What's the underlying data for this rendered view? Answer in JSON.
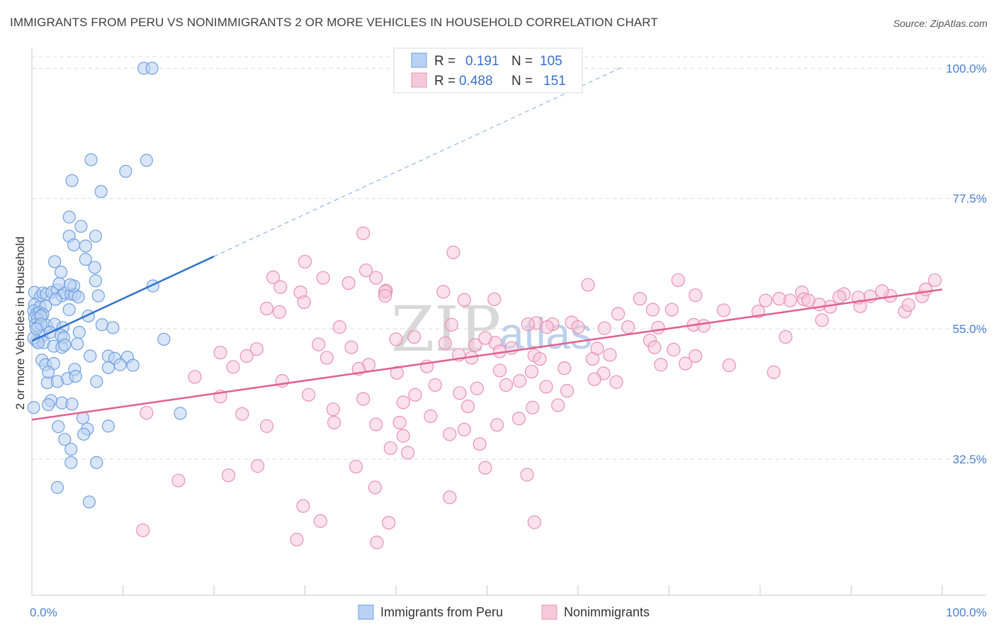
{
  "title": "IMMIGRANTS FROM PERU VS NONIMMIGRANTS 2 OR MORE VEHICLES IN HOUSEHOLD CORRELATION CHART",
  "source": "Source: ZipAtlas.com",
  "watermark": {
    "zip": "ZIP",
    "atlas": "atlas"
  },
  "colors": {
    "blue": "#6fa0e0",
    "blue_fill": "#b9d1f3",
    "blue_line": "#2f72cc",
    "pink": "#e891b3",
    "pink_fill": "#f6c9da",
    "pink_line": "#e0608e",
    "grid": "#d9d9d9",
    "tick_text": "#4a7fd0"
  },
  "legend": {
    "rows": [
      {
        "r_label": "R =",
        "r_value": "0.191",
        "n_label": "N =",
        "n_value": "105"
      },
      {
        "r_label": "R =",
        "r_value": "0.488",
        "n_label": "N =",
        "n_value": "151"
      }
    ]
  },
  "bottom_legend": [
    "Immigrants from Peru",
    "Nonimmigrants"
  ],
  "chart_data": {
    "type": "scatter",
    "title": "IMMIGRANTS FROM PERU VS NONIMMIGRANTS 2 OR MORE VEHICLES IN HOUSEHOLD CORRELATION CHART",
    "xlabel": "",
    "ylabel": "2 or more Vehicles in Household",
    "xlim": [
      0,
      100
    ],
    "ylim": [
      9,
      102
    ],
    "x_tick_labels": [
      "0.0%",
      "100.0%"
    ],
    "y_ticks": [
      32.5,
      55.0,
      77.5,
      100.0
    ],
    "y_tick_labels": [
      "32.5%",
      "55.0%",
      "77.5%",
      "100.0%"
    ],
    "grid": true,
    "series": [
      {
        "name": "Immigrants from Peru",
        "r": 0.191,
        "n": 105,
        "trend": {
          "x0": 0,
          "y0": 52.9,
          "x1": 20,
          "y1": 67.5,
          "dashed_to_x": 65,
          "dashed_to_y": 100.3
        },
        "points": [
          [
            12.3,
            100
          ],
          [
            13.2,
            100
          ],
          [
            6.5,
            84.2
          ],
          [
            12.6,
            84.1
          ],
          [
            10.3,
            82.2
          ],
          [
            4.4,
            80.6
          ],
          [
            7.6,
            78.7
          ],
          [
            4.1,
            74.3
          ],
          [
            5.4,
            72.7
          ],
          [
            4.1,
            71.0
          ],
          [
            7.0,
            71.0
          ],
          [
            4.6,
            69.5
          ],
          [
            5.9,
            69.3
          ],
          [
            5.9,
            67.0
          ],
          [
            2.5,
            66.6
          ],
          [
            0.3,
            61.3
          ],
          [
            0.9,
            60.5
          ],
          [
            1.2,
            61.2
          ],
          [
            1.6,
            61.0
          ],
          [
            2.2,
            61.3
          ],
          [
            2.8,
            61.7
          ],
          [
            3.3,
            60.7
          ],
          [
            3.6,
            61.2
          ],
          [
            4.3,
            61.0
          ],
          [
            4.7,
            60.9
          ],
          [
            5.1,
            60.5
          ],
          [
            0.3,
            59.2
          ],
          [
            0.9,
            58.8
          ],
          [
            1.5,
            58.9
          ],
          [
            0.2,
            58.1
          ],
          [
            0.5,
            57.6
          ],
          [
            0.8,
            57.8
          ],
          [
            1.2,
            57.5
          ],
          [
            0.3,
            56.9
          ],
          [
            0.6,
            56.7
          ],
          [
            1.0,
            57.2
          ],
          [
            0.4,
            55.7
          ],
          [
            0.7,
            55.4
          ],
          [
            1.6,
            55.6
          ],
          [
            2.5,
            55.8
          ],
          [
            3.4,
            55.2
          ],
          [
            4.1,
            58.3
          ],
          [
            1.1,
            53.7
          ],
          [
            2.0,
            54.4
          ],
          [
            3.2,
            53.9
          ],
          [
            0.5,
            52.9
          ],
          [
            1.3,
            52.6
          ],
          [
            3.5,
            53.5
          ],
          [
            5.2,
            54.4
          ],
          [
            7.3,
            60.7
          ],
          [
            7.0,
            63.3
          ],
          [
            4.6,
            62.4
          ],
          [
            3.0,
            62.8
          ],
          [
            13.3,
            62.4
          ],
          [
            2.4,
            52.0
          ],
          [
            3.3,
            51.8
          ],
          [
            3.6,
            52.2
          ],
          [
            5.0,
            52.4
          ],
          [
            6.4,
            50.3
          ],
          [
            8.4,
            50.3
          ],
          [
            9.1,
            49.9
          ],
          [
            10.5,
            50.1
          ],
          [
            14.5,
            53.2
          ],
          [
            1.1,
            49.6
          ],
          [
            1.5,
            48.8
          ],
          [
            2.4,
            49.0
          ],
          [
            4.7,
            48.0
          ],
          [
            8.4,
            48.3
          ],
          [
            9.7,
            48.8
          ],
          [
            11.1,
            48.7
          ],
          [
            1.7,
            45.7
          ],
          [
            2.8,
            45.9
          ],
          [
            3.9,
            46.4
          ],
          [
            4.8,
            46.8
          ],
          [
            7.1,
            45.9
          ],
          [
            2.1,
            42.6
          ],
          [
            1.8,
            41.9
          ],
          [
            3.3,
            42.2
          ],
          [
            4.4,
            42.0
          ],
          [
            16.3,
            40.4
          ],
          [
            5.6,
            39.6
          ],
          [
            2.9,
            38.1
          ],
          [
            6.1,
            37.7
          ],
          [
            8.4,
            38.2
          ],
          [
            3.6,
            35.9
          ],
          [
            5.7,
            36.8
          ],
          [
            4.3,
            34.2
          ],
          [
            7.1,
            31.9
          ],
          [
            4.3,
            31.9
          ],
          [
            2.8,
            27.6
          ],
          [
            6.3,
            25.1
          ],
          [
            0.2,
            41.4
          ],
          [
            0.2,
            53.4
          ],
          [
            1.0,
            55.8
          ],
          [
            2.6,
            60.1
          ],
          [
            3.2,
            64.8
          ],
          [
            6.9,
            65.6
          ],
          [
            7.7,
            55.7
          ],
          [
            8.9,
            55.2
          ],
          [
            0.5,
            55.0
          ],
          [
            6.2,
            57.2
          ],
          [
            4.2,
            62.6
          ],
          [
            0.7,
            52.6
          ],
          [
            1.8,
            47.5
          ]
        ]
      },
      {
        "name": "Nonimmigrants",
        "r": 0.488,
        "n": 151,
        "trend": {
          "x0": 0,
          "y0": 39.3,
          "x1": 100,
          "y1": 61.8
        },
        "points": [
          [
            36.4,
            71.5
          ],
          [
            46.3,
            68.2
          ],
          [
            30.0,
            66.6
          ],
          [
            36.7,
            65.1
          ],
          [
            26.5,
            63.9
          ],
          [
            32.0,
            63.8
          ],
          [
            37.8,
            63.8
          ],
          [
            34.8,
            62.9
          ],
          [
            27.3,
            62.2
          ],
          [
            38.9,
            61.6
          ],
          [
            45.2,
            61.4
          ],
          [
            38.8,
            61.4
          ],
          [
            29.5,
            61.3
          ],
          [
            38.8,
            60.7
          ],
          [
            47.5,
            60.0
          ],
          [
            61.1,
            62.6
          ],
          [
            71.0,
            63.4
          ],
          [
            84.6,
            61.3
          ],
          [
            66.8,
            60.2
          ],
          [
            84.8,
            60.1
          ],
          [
            50.8,
            60.1
          ],
          [
            72.9,
            60.8
          ],
          [
            94.3,
            60.7
          ],
          [
            92.1,
            60.6
          ],
          [
            89.2,
            61.0
          ],
          [
            29.9,
            59.6
          ],
          [
            25.8,
            58.5
          ],
          [
            27.2,
            57.9
          ],
          [
            64.4,
            57.6
          ],
          [
            68.2,
            58.3
          ],
          [
            70.3,
            58.3
          ],
          [
            91.0,
            58.9
          ],
          [
            97.8,
            60.6
          ],
          [
            55.4,
            56.0
          ],
          [
            57.2,
            55.8
          ],
          [
            59.3,
            56.1
          ],
          [
            60.0,
            55.3
          ],
          [
            65.5,
            55.3
          ],
          [
            72.7,
            55.7
          ],
          [
            76.0,
            58.2
          ],
          [
            79.8,
            58.0
          ],
          [
            87.7,
            58.8
          ],
          [
            33.8,
            55.3
          ],
          [
            46.1,
            55.7
          ],
          [
            54.5,
            55.8
          ],
          [
            56.6,
            55.3
          ],
          [
            62.9,
            55.1
          ],
          [
            68.8,
            55.2
          ],
          [
            73.8,
            55.5
          ],
          [
            86.8,
            56.5
          ],
          [
            95.9,
            58.0
          ],
          [
            50.9,
            52.6
          ],
          [
            51.4,
            51.1
          ],
          [
            52.7,
            51.7
          ],
          [
            55.2,
            50.4
          ],
          [
            62.1,
            51.6
          ],
          [
            63.5,
            50.5
          ],
          [
            67.9,
            53.0
          ],
          [
            68.4,
            51.8
          ],
          [
            70.5,
            51.4
          ],
          [
            82.8,
            53.6
          ],
          [
            48.7,
            52.2
          ],
          [
            49.8,
            53.4
          ],
          [
            45.4,
            52.5
          ],
          [
            24.7,
            51.5
          ],
          [
            31.5,
            52.3
          ],
          [
            35.1,
            51.8
          ],
          [
            40.0,
            53.2
          ],
          [
            42.0,
            53.6
          ],
          [
            20.7,
            50.9
          ],
          [
            23.6,
            50.3
          ],
          [
            37.0,
            48.8
          ],
          [
            43.4,
            48.5
          ],
          [
            46.9,
            50.5
          ],
          [
            48.3,
            50.0
          ],
          [
            55.8,
            49.8
          ],
          [
            61.6,
            49.8
          ],
          [
            69.1,
            48.8
          ],
          [
            71.8,
            49.0
          ],
          [
            72.9,
            50.3
          ],
          [
            76.6,
            48.7
          ],
          [
            81.5,
            47.5
          ],
          [
            22.1,
            48.4
          ],
          [
            32.4,
            50.0
          ],
          [
            35.9,
            48.1
          ],
          [
            40.1,
            47.4
          ],
          [
            51.4,
            47.8
          ],
          [
            54.9,
            47.6
          ],
          [
            58.5,
            48.2
          ],
          [
            62.8,
            47.3
          ],
          [
            64.2,
            45.8
          ],
          [
            17.9,
            46.7
          ],
          [
            27.5,
            46.0
          ],
          [
            44.3,
            45.3
          ],
          [
            53.6,
            46.0
          ],
          [
            61.8,
            46.3
          ],
          [
            42.1,
            43.6
          ],
          [
            48.9,
            44.7
          ],
          [
            56.5,
            45.0
          ],
          [
            20.7,
            43.3
          ],
          [
            30.4,
            43.6
          ],
          [
            36.4,
            42.9
          ],
          [
            40.8,
            42.3
          ],
          [
            47.0,
            43.9
          ],
          [
            52.1,
            45.3
          ],
          [
            58.8,
            44.3
          ],
          [
            12.6,
            40.5
          ],
          [
            23.1,
            40.3
          ],
          [
            33.1,
            41.1
          ],
          [
            40.4,
            38.8
          ],
          [
            43.8,
            39.9
          ],
          [
            47.9,
            41.6
          ],
          [
            25.8,
            38.2
          ],
          [
            33.2,
            38.8
          ],
          [
            37.8,
            38.5
          ],
          [
            40.8,
            36.5
          ],
          [
            47.5,
            37.6
          ],
          [
            51.1,
            38.4
          ],
          [
            53.5,
            39.5
          ],
          [
            55.0,
            41.4
          ],
          [
            57.8,
            41.8
          ],
          [
            45.9,
            36.8
          ],
          [
            49.2,
            35.1
          ],
          [
            39.4,
            34.4
          ],
          [
            41.3,
            33.6
          ],
          [
            35.6,
            31.2
          ],
          [
            24.8,
            31.3
          ],
          [
            21.6,
            29.7
          ],
          [
            49.8,
            31.0
          ],
          [
            54.4,
            29.8
          ],
          [
            16.1,
            28.8
          ],
          [
            37.7,
            27.6
          ],
          [
            45.9,
            25.9
          ],
          [
            29.8,
            24.4
          ],
          [
            31.7,
            21.8
          ],
          [
            39.2,
            21.5
          ],
          [
            55.2,
            21.6
          ],
          [
            29.1,
            18.6
          ],
          [
            37.9,
            18.1
          ],
          [
            12.2,
            20.2
          ],
          [
            93.4,
            61.5
          ],
          [
            96.3,
            59.1
          ],
          [
            98.2,
            61.8
          ],
          [
            99.2,
            63.4
          ],
          [
            88.7,
            60.5
          ],
          [
            86.5,
            59.2
          ],
          [
            90.8,
            60.4
          ],
          [
            85.3,
            59.9
          ],
          [
            83.3,
            59.9
          ],
          [
            82.1,
            60.2
          ],
          [
            80.6,
            59.9
          ]
        ]
      }
    ]
  }
}
